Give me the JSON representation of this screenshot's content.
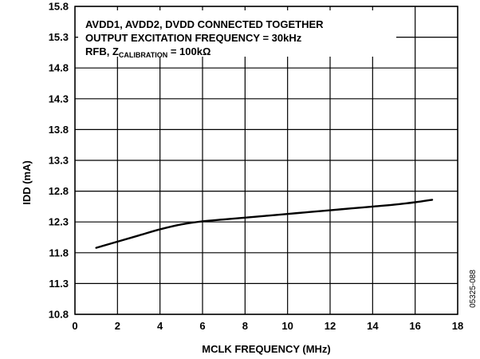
{
  "chart_data": {
    "type": "line",
    "xlabel": "MCLK FREQUENCY (MHz)",
    "ylabel": "IDD (mA)",
    "xlim": [
      0,
      18
    ],
    "ylim": [
      10.8,
      15.8
    ],
    "x_ticks": [
      0,
      2,
      4,
      6,
      8,
      10,
      12,
      14,
      16,
      18
    ],
    "y_ticks": [
      10.8,
      11.3,
      11.8,
      12.3,
      12.8,
      13.3,
      13.8,
      14.3,
      14.8,
      15.3,
      15.8
    ],
    "x_tick_labels": [
      "0",
      "2",
      "4",
      "6",
      "8",
      "10",
      "12",
      "14",
      "16",
      "18"
    ],
    "y_tick_labels": [
      "10.8",
      "11.3",
      "11.8",
      "12.3",
      "12.8",
      "13.3",
      "13.8",
      "14.3",
      "14.8",
      "15.3",
      "15.8"
    ],
    "grid": true,
    "series": [
      {
        "x": [
          1,
          2,
          3,
          4,
          5,
          6,
          7,
          8,
          9,
          10,
          11,
          12,
          13,
          14,
          15,
          16,
          16.8
        ],
        "y": [
          11.88,
          11.98,
          12.08,
          12.18,
          12.26,
          12.31,
          12.34,
          12.37,
          12.4,
          12.43,
          12.46,
          12.49,
          12.52,
          12.55,
          12.58,
          12.62,
          12.66
        ]
      }
    ],
    "annotation": {
      "line1": "AVDD1, AVDD2, DVDD CONNECTED TOGETHER",
      "line2": "OUTPUT EXCITATION FREQUENCY = 30kHz",
      "line3_prefix": "RFB, Z",
      "line3_subscript": "CALIBRATION",
      "line3_suffix": " = 100kΩ"
    },
    "figure_code": "05325-088"
  }
}
